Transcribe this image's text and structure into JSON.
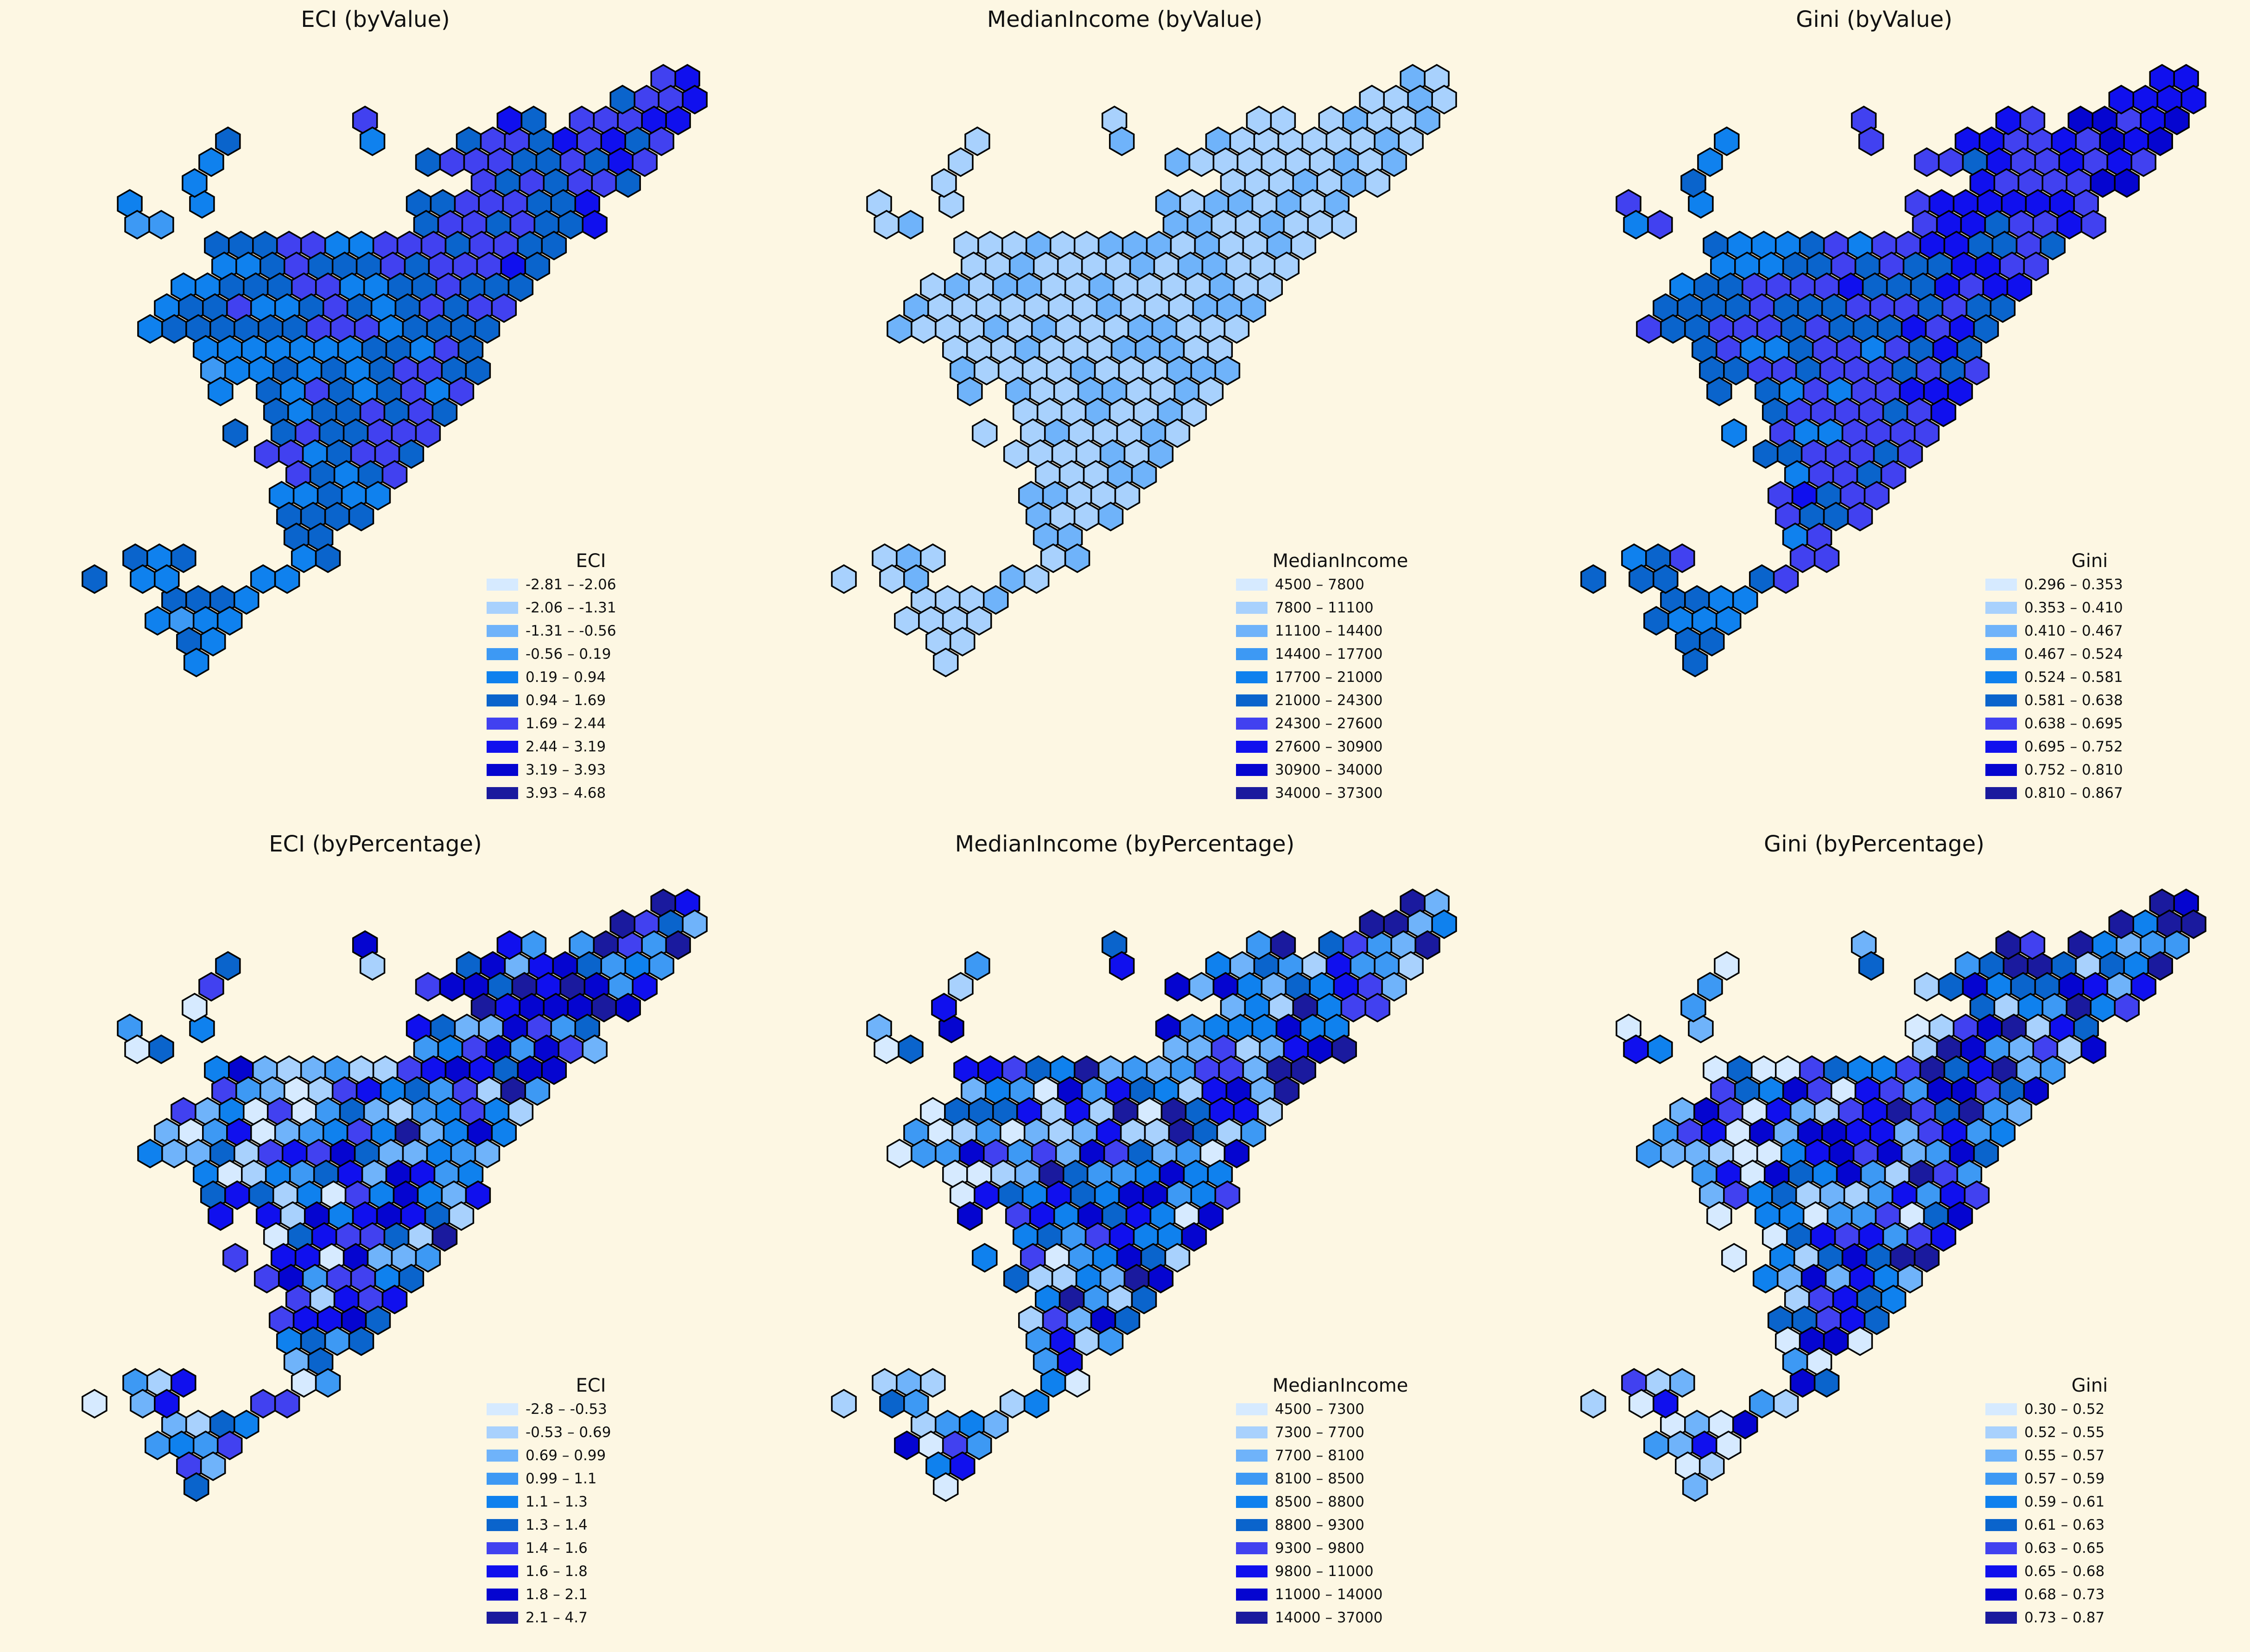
{
  "palette": [
    "#d6eaff",
    "#a8d1fd",
    "#6fb3fa",
    "#3d99f4",
    "#0f81ee",
    "#0a64cc",
    "#4141f0",
    "#1010ee",
    "#0505d0",
    "#1a1a9e"
  ],
  "panels": [
    {
      "title": "ECI (byValue)",
      "legend_title": "ECI",
      "legend": [
        "-2.81 – -2.06",
        "-2.06 – -1.31",
        "-1.31 – -0.56",
        "-0.56 – 0.19",
        "0.19 – 0.94",
        "0.94 – 1.69",
        "1.69 – 2.44",
        "2.44 – 3.19",
        "3.19 – 3.93",
        "3.93 – 4.68"
      ],
      "seed": 3,
      "bias": 5.2,
      "spread": 1.1,
      "grad": 0.35
    },
    {
      "title": "MedianIncome (byValue)",
      "legend_title": "MedianIncome",
      "legend": [
        "4500 – 7800",
        "7800 – 11100",
        "11100 – 14400",
        "14400 – 17700",
        "17700 – 21000",
        "21000 – 24300",
        "24300 – 27600",
        "27600 – 30900",
        "30900 – 34000",
        "34000 – 37300"
      ],
      "seed": 11,
      "bias": 1.3,
      "spread": 0.6,
      "grad": 0.0
    },
    {
      "title": "Gini (byValue)",
      "legend_title": "Gini",
      "legend": [
        "0.296 – 0.353",
        "0.353 – 0.410",
        "0.410 – 0.467",
        "0.467 – 0.524",
        "0.524 – 0.581",
        "0.581 – 0.638",
        "0.638 – 0.695",
        "0.695 – 0.752",
        "0.752 – 0.810",
        "0.810 – 0.867"
      ],
      "seed": 21,
      "bias": 5.8,
      "spread": 1.2,
      "grad": 0.45
    },
    {
      "title": "ECI (byPercentage)",
      "legend_title": "ECI",
      "legend": [
        "-2.8 – -0.53",
        "-0.53 – 0.69",
        "0.69 – 0.99",
        "0.99 – 1.1",
        "1.1 – 1.3",
        "1.3 – 1.4",
        "1.4 – 1.6",
        "1.6 – 1.8",
        "1.8 – 2.1",
        "2.1 – 4.7"
      ],
      "seed": 5,
      "bias": 4.5,
      "spread": 4.5,
      "grad": 0.6
    },
    {
      "title": "MedianIncome (byPercentage)",
      "legend_title": "MedianIncome",
      "legend": [
        "4500 – 7300",
        "7300 – 7700",
        "7700 – 8100",
        "8100 – 8500",
        "8500 – 8800",
        "8800 – 9300",
        "9300 – 9800",
        "9800 – 11000",
        "11000 – 14000",
        "14000 – 37000"
      ],
      "seed": 17,
      "bias": 4.5,
      "spread": 4.5,
      "grad": 0.3
    },
    {
      "title": "Gini (byPercentage)",
      "legend_title": "Gini",
      "legend": [
        "0.30 – 0.52",
        "0.52 – 0.55",
        "0.55 – 0.57",
        "0.57 – 0.59",
        "0.59 – 0.61",
        "0.61 – 0.63",
        "0.63 – 0.65",
        "0.65 – 0.68",
        "0.68 – 0.73",
        "0.73 – 0.87"
      ],
      "seed": 29,
      "bias": 4.5,
      "spread": 4.5,
      "grad": 0.7
    }
  ]
}
